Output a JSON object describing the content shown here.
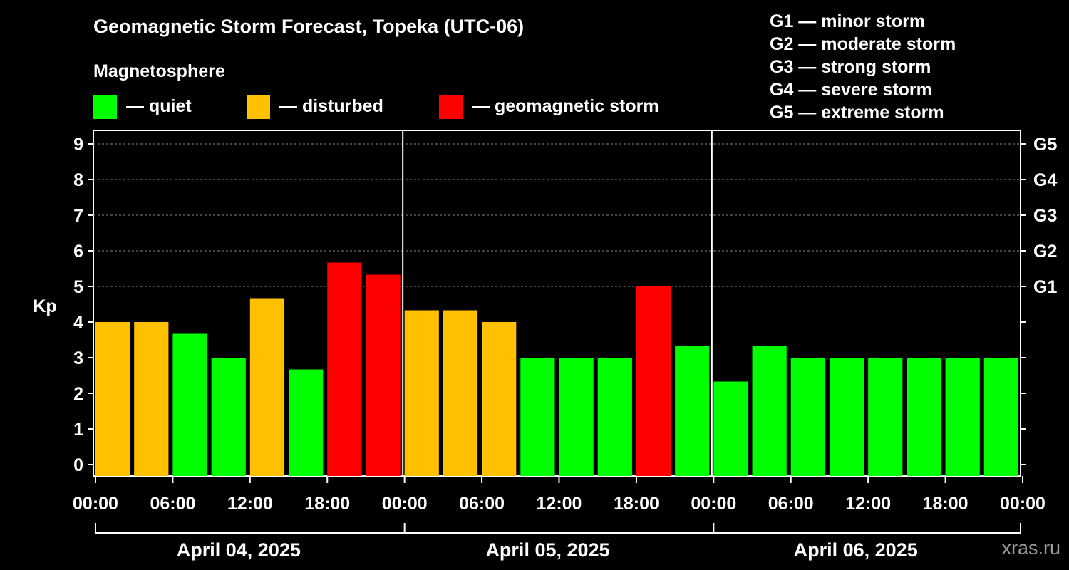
{
  "title": "Geomagnetic Storm Forecast, Topeka (UTC-06)",
  "subtitle": "Magnetosphere",
  "legend": [
    {
      "label": "— quiet",
      "color": "#00ff00"
    },
    {
      "label": "— disturbed",
      "color": "#ffc000"
    },
    {
      "label": "— geomagnetic storm",
      "color": "#ff0000"
    }
  ],
  "storm_scale": [
    "G1 — minor storm",
    "G2 — moderate storm",
    "G3 — strong storm",
    "G4 — severe storm",
    "G5 — extreme storm"
  ],
  "watermark": "xras.ru",
  "chart_data": {
    "type": "bar",
    "ylabel": "Kp",
    "ylim": [
      0,
      9
    ],
    "yticks": [
      0,
      1,
      2,
      3,
      4,
      5,
      6,
      7,
      8,
      9
    ],
    "right_axis": [
      {
        "value": 5,
        "label": "G1"
      },
      {
        "value": 6,
        "label": "G2"
      },
      {
        "value": 7,
        "label": "G3"
      },
      {
        "value": 8,
        "label": "G4"
      },
      {
        "value": 9,
        "label": "G5"
      }
    ],
    "xtick_labels": [
      "00:00",
      "06:00",
      "12:00",
      "18:00",
      "00:00",
      "06:00",
      "12:00",
      "18:00",
      "00:00",
      "06:00",
      "12:00",
      "18:00",
      "00:00"
    ],
    "days": [
      "April 04, 2025",
      "April 05, 2025",
      "April 06, 2025"
    ],
    "interval_hours": 3,
    "values": [
      4.0,
      4.0,
      3.67,
      3.0,
      4.67,
      2.67,
      5.67,
      5.33,
      4.33,
      4.33,
      4.0,
      3.0,
      3.0,
      3.0,
      5.0,
      3.33,
      2.33,
      3.33,
      3.0,
      3.0,
      3.0,
      3.0,
      3.0,
      3.0
    ],
    "levels": [
      "disturbed",
      "disturbed",
      "quiet",
      "quiet",
      "disturbed",
      "quiet",
      "storm",
      "storm",
      "disturbed",
      "disturbed",
      "disturbed",
      "quiet",
      "quiet",
      "quiet",
      "storm",
      "quiet",
      "quiet",
      "quiet",
      "quiet",
      "quiet",
      "quiet",
      "quiet",
      "quiet",
      "quiet"
    ],
    "level_colors": {
      "quiet": "#00ff00",
      "disturbed": "#ffc000",
      "storm": "#ff0000"
    }
  }
}
